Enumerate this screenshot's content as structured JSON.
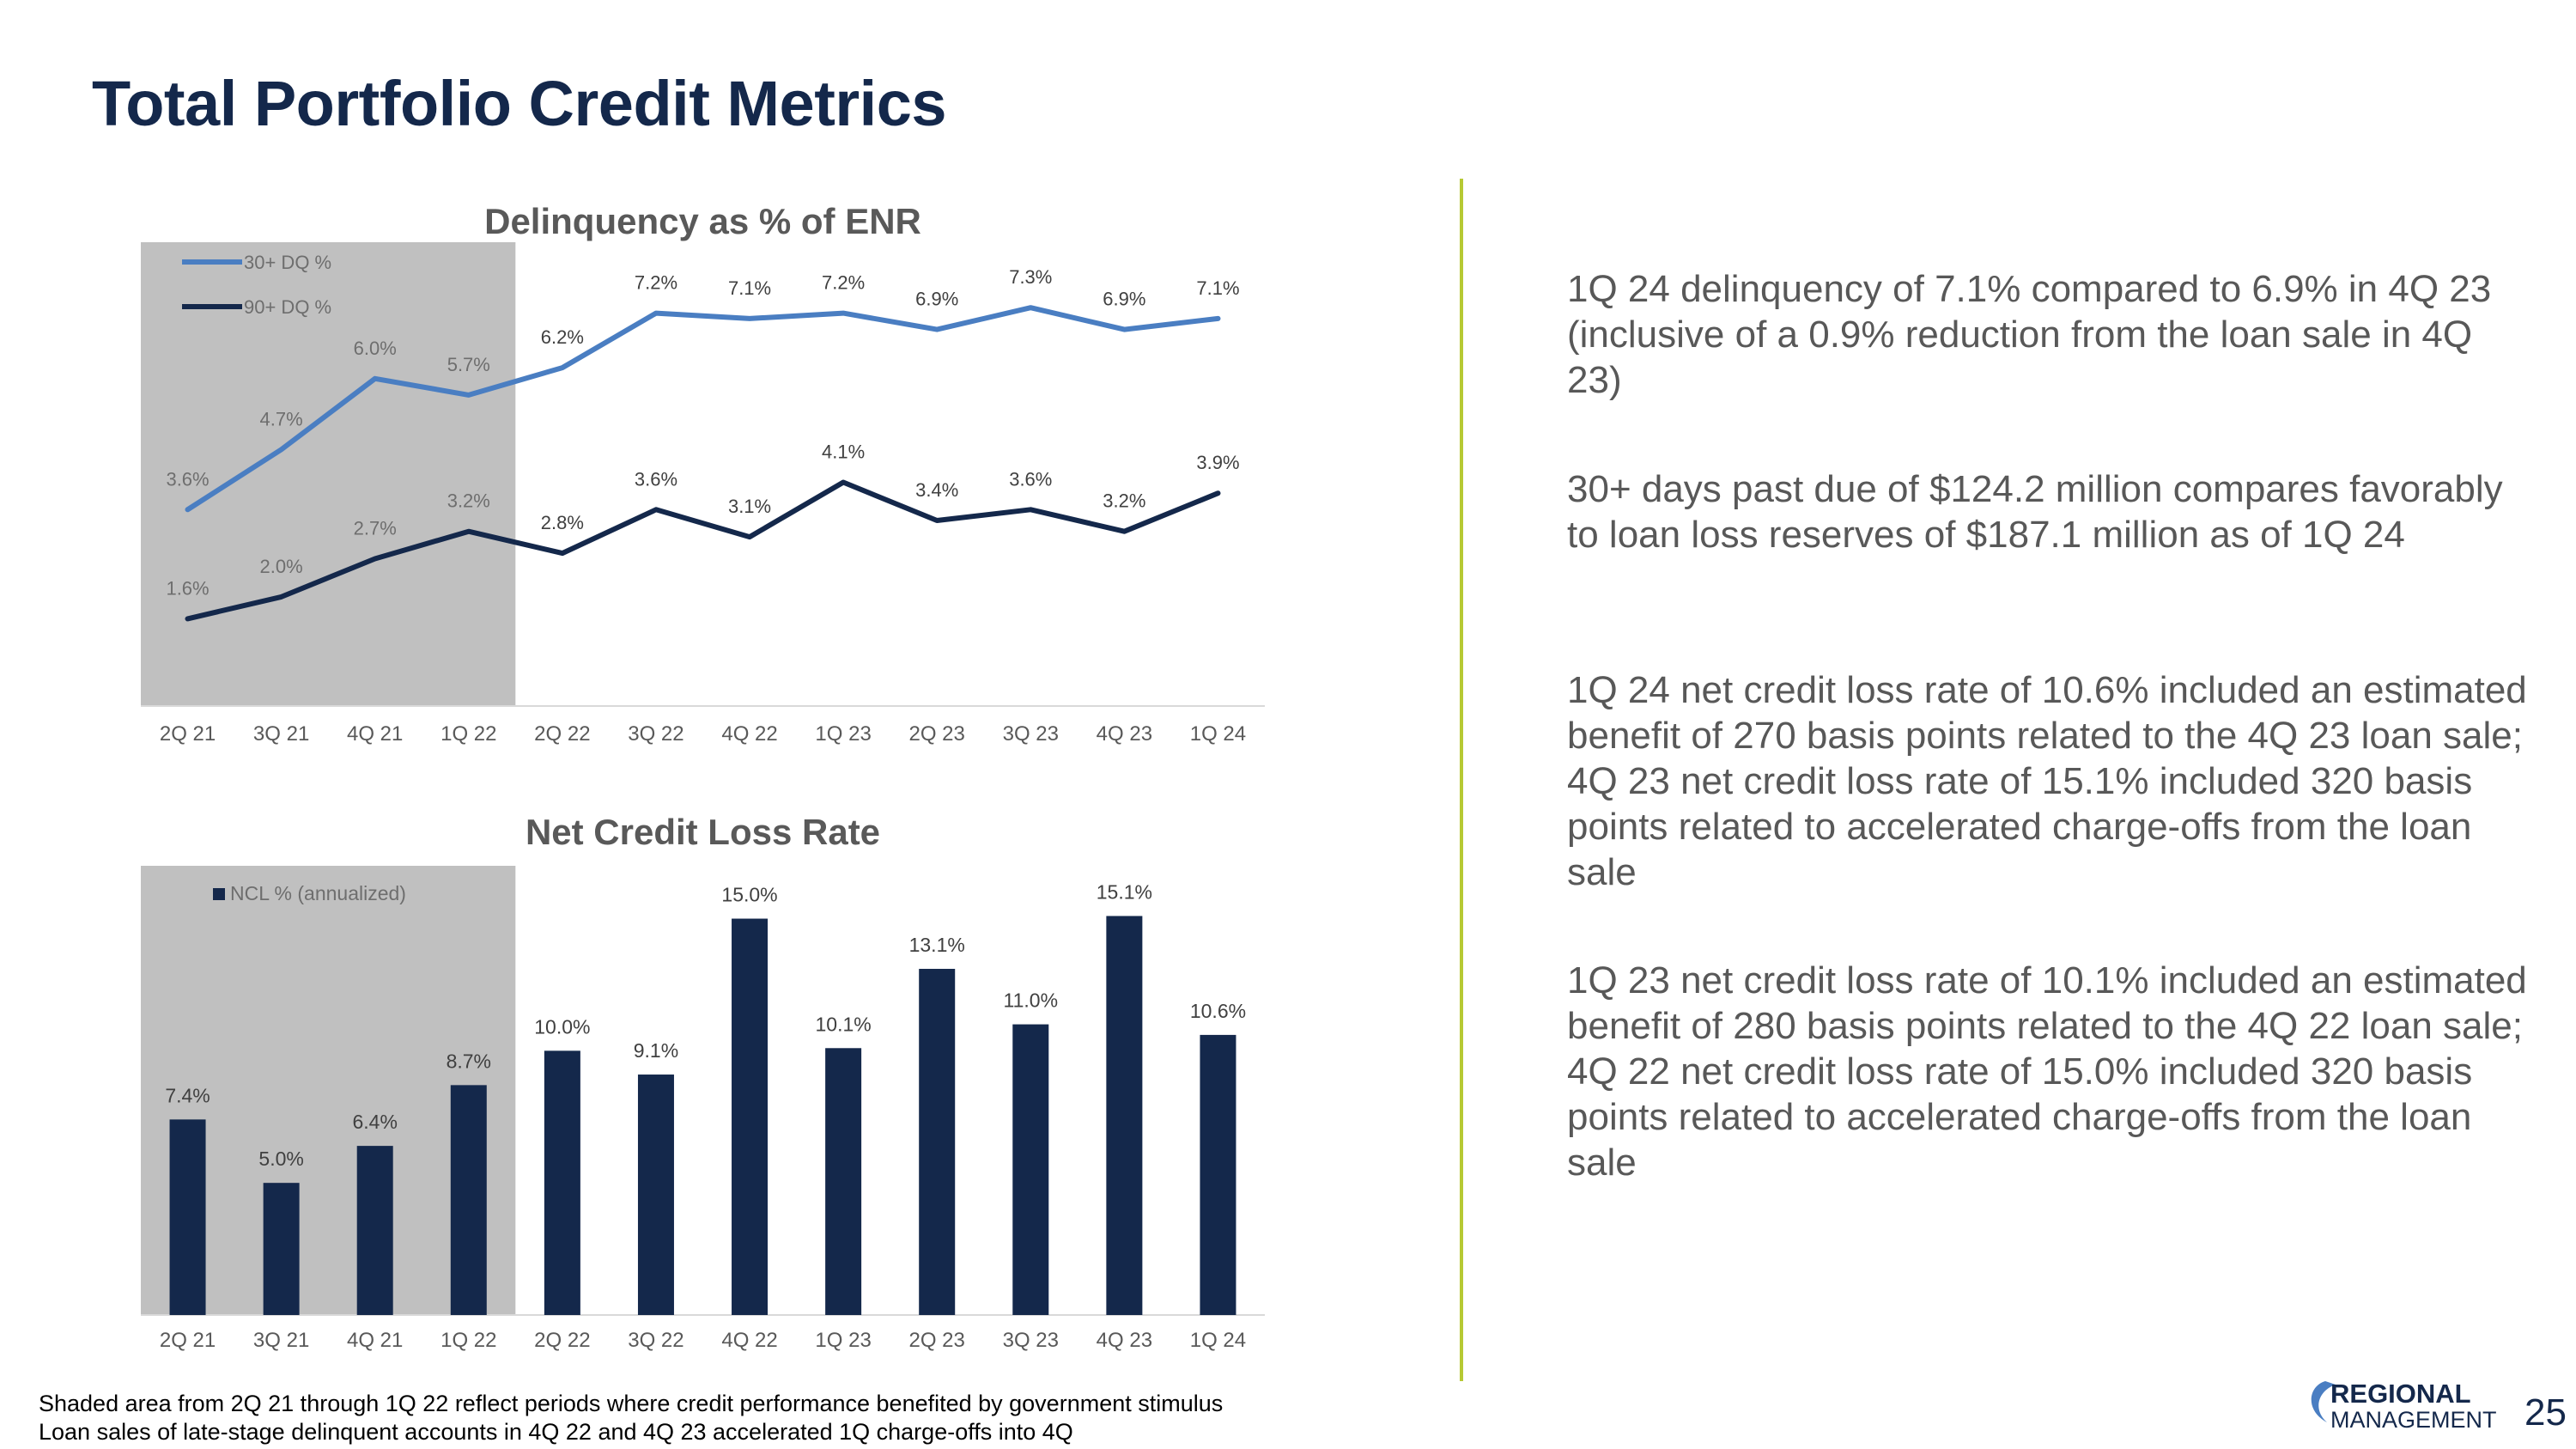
{
  "page": {
    "title": "Total Portfolio Credit Metrics",
    "page_number": "25",
    "logo_text": "REGIONAL MANAGEMENT",
    "colors": {
      "title": "#14284b",
      "divider": "#b6c934",
      "shade": "#c0c0c0",
      "light_blue": "#4a7ec2",
      "navy": "#14284b"
    }
  },
  "bullets": [
    "1Q 24 delinquency of 7.1% compared to 6.9% in 4Q 23 (inclusive of a 0.9% reduction from the loan sale in 4Q 23)",
    "30+ days past due of $124.2 million compares favorably to loan loss reserves of $187.1 million as of 1Q 24",
    "1Q 24 net credit loss rate of 10.6% included an estimated benefit of 270 basis points related to the 4Q 23 loan sale; 4Q 23 net credit loss rate of 15.1% included 320 basis points related to accelerated charge-offs from the loan sale",
    "1Q 23 net credit loss rate of 10.1% included an estimated benefit of 280 basis points related to the 4Q 22 loan sale; 4Q 22 net credit loss rate of 15.0% included 320 basis points related to accelerated charge-offs from the loan sale"
  ],
  "footnotes": [
    "Shaded area from 2Q 21 through 1Q 22 reflect periods where credit performance benefited by government stimulus",
    "Loan sales of late-stage delinquent accounts in 4Q 22 and 4Q 23 accelerated 1Q charge-offs into 4Q"
  ],
  "chart_data": [
    {
      "type": "line",
      "title": "Delinquency as % of ENR",
      "categories": [
        "2Q 21",
        "3Q 21",
        "4Q 21",
        "1Q 22",
        "2Q 22",
        "3Q 22",
        "4Q 22",
        "1Q 23",
        "2Q 23",
        "3Q 23",
        "4Q 23",
        "1Q 24"
      ],
      "series": [
        {
          "name": "30+ DQ %",
          "values": [
            3.6,
            4.7,
            6.0,
            5.7,
            6.2,
            7.2,
            7.1,
            7.2,
            6.9,
            7.3,
            6.9,
            7.1
          ],
          "labels": [
            "3.6%",
            "4.7%",
            "6.0%",
            "5.7%",
            "6.2%",
            "7.2%",
            "7.1%",
            "7.2%",
            "6.9%",
            "7.3%",
            "6.9%",
            "7.1%"
          ]
        },
        {
          "name": "90+ DQ %",
          "values": [
            1.6,
            2.0,
            2.7,
            3.2,
            2.8,
            3.6,
            3.1,
            4.1,
            3.4,
            3.6,
            3.2,
            3.9
          ],
          "labels": [
            "1.6%",
            "2.0%",
            "2.7%",
            "3.2%",
            "2.8%",
            "3.6%",
            "3.1%",
            "4.1%",
            "3.4%",
            "3.6%",
            "3.2%",
            "3.9%"
          ]
        }
      ],
      "shaded_range": [
        "2Q 21",
        "1Q 22"
      ],
      "ylim": [
        0,
        8.5
      ],
      "legend": "top-left"
    },
    {
      "type": "bar",
      "title": "Net Credit Loss Rate",
      "categories": [
        "2Q 21",
        "3Q 21",
        "4Q 21",
        "1Q 22",
        "2Q 22",
        "3Q 22",
        "4Q 22",
        "1Q 23",
        "2Q 23",
        "3Q 23",
        "4Q 23",
        "1Q 24"
      ],
      "series": [
        {
          "name": "NCL % (annualized)",
          "values": [
            7.4,
            5.0,
            6.4,
            8.7,
            10.0,
            9.1,
            15.0,
            10.1,
            13.1,
            11.0,
            15.1,
            10.6
          ],
          "labels": [
            "7.4%",
            "5.0%",
            "6.4%",
            "8.7%",
            "10.0%",
            "9.1%",
            "15.0%",
            "10.1%",
            "13.1%",
            "11.0%",
            "15.1%",
            "10.6%"
          ]
        }
      ],
      "shaded_range": [
        "2Q 21",
        "1Q 22"
      ],
      "ylim": [
        0,
        17
      ],
      "legend": "top-left"
    }
  ]
}
